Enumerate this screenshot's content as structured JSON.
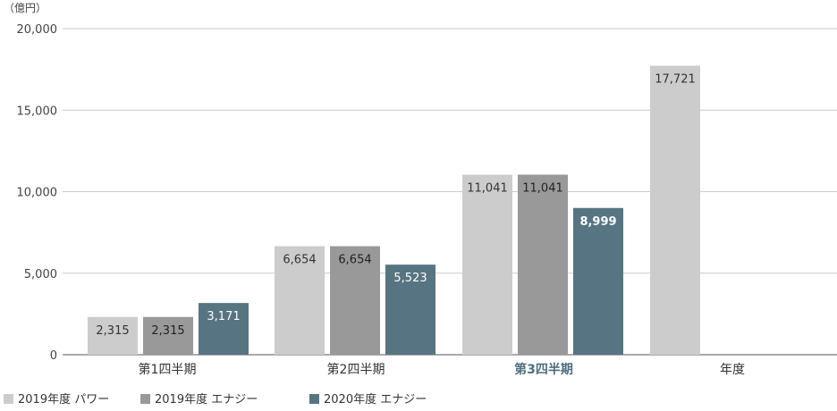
{
  "chart_data": {
    "type": "bar",
    "unit_label": "（億円）",
    "categories": [
      "第1四半期",
      "第2四半期",
      "第3四半期",
      "年度"
    ],
    "highlight_category": "第3四半期",
    "ylim": [
      0,
      20000
    ],
    "yticks": [
      0,
      5000,
      10000,
      15000,
      20000
    ],
    "ytick_labels": [
      "0",
      "5,000",
      "10,000",
      "15,000",
      "20,000"
    ],
    "grid": true,
    "legend_position": "bottom-left",
    "series": [
      {
        "name": "2019年度 パワー",
        "color": "#cccccc",
        "label_color": "#333333",
        "values": [
          2315,
          6654,
          11041,
          17721
        ],
        "labels": [
          "2,315",
          "6,654",
          "11,041",
          "17,721"
        ]
      },
      {
        "name": "2019年度 エナジー",
        "color": "#999999",
        "label_color": "#222222",
        "values": [
          2315,
          6654,
          11041,
          null
        ],
        "labels": [
          "2,315",
          "6,654",
          "11,041",
          ""
        ]
      },
      {
        "name": "2020年度 エナジー",
        "color": "#577482",
        "label_color": "#ffffff",
        "values": [
          3171,
          5523,
          8999,
          null
        ],
        "labels": [
          "3,171",
          "5,523",
          "8,999",
          ""
        ]
      }
    ]
  }
}
